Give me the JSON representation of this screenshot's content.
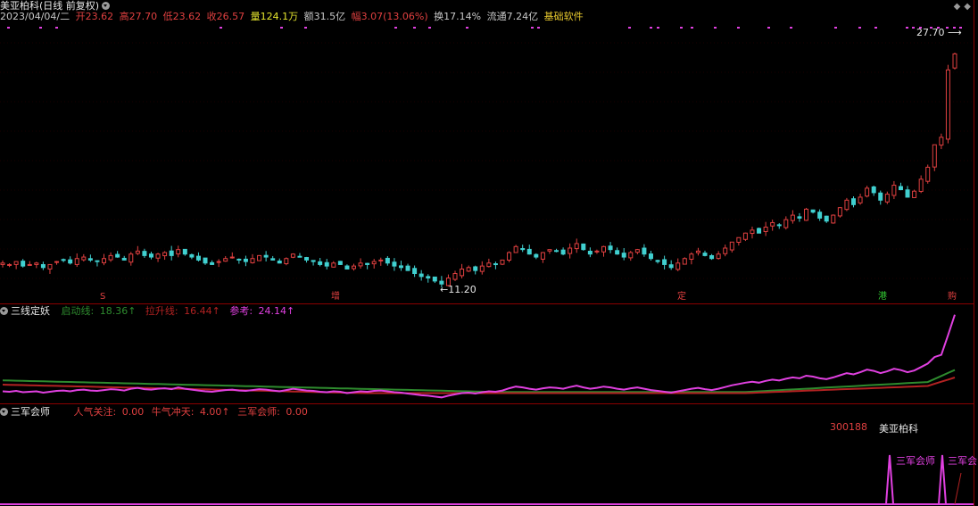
{
  "header": {
    "title": "美亚柏科(日线 前复权)"
  },
  "quote": {
    "date": "2023/04/04/二",
    "open_label": "开",
    "open": "23.62",
    "high_label": "高",
    "high": "27.70",
    "low_label": "低",
    "low": "23.62",
    "close_label": "收",
    "close": "26.57",
    "volume_label": "量",
    "volume": "124.1万",
    "amount_label": "额",
    "amount": "31.5亿",
    "change_label": "幅",
    "change": "3.07(13.06%)",
    "turnover_label": "换",
    "turnover": "17.14%",
    "float_label": "流通",
    "float": "7.24亿",
    "sector": "基础软件"
  },
  "chart_labels": {
    "high_price": "27.70",
    "low_price": "11.20"
  },
  "markers": [
    "S",
    "增",
    "定",
    "港",
    "购"
  ],
  "indicator1": {
    "title": "三线定妖",
    "start_label": "启动线: ",
    "start_value": "18.36↑",
    "lift_label": "拉升线: ",
    "lift_value": "16.44↑",
    "ref_label": "参考: ",
    "ref_value": "24.14↑"
  },
  "indicator2": {
    "title": "三军会师",
    "pop_label": "人气关注: ",
    "pop_value": "0.00",
    "bull_label": "牛气冲天: ",
    "bull_value": "4.00↑",
    "sjs_label": "三军会师: ",
    "sjs_value": "0.00",
    "code": "300188",
    "name": "美亚柏科",
    "signal_text": "三军会师",
    "signal_text_2": "三军会"
  },
  "colors": {
    "up": "#e04040",
    "down": "#40d0d0",
    "start_line": "#2e8b2e",
    "lift_line": "#b22222",
    "ref_line": "#e040e0",
    "dots": "#e040e0"
  },
  "chart_data": {
    "type": "candlestick",
    "price_range": [
      10.5,
      28.5
    ],
    "close": [
      12.6,
      12.5,
      12.7,
      12.4,
      12.5,
      12.6,
      12.3,
      12.5,
      12.7,
      12.8,
      12.6,
      12.9,
      13.0,
      12.8,
      12.7,
      12.9,
      13.1,
      13.0,
      12.8,
      13.2,
      13.4,
      13.1,
      13.0,
      13.2,
      13.3,
      13.1,
      13.5,
      13.2,
      13.0,
      12.8,
      12.6,
      12.5,
      12.7,
      12.9,
      13.0,
      12.8,
      12.7,
      12.9,
      13.1,
      13.0,
      12.8,
      12.6,
      12.9,
      13.2,
      13.0,
      12.8,
      12.7,
      12.5,
      12.4,
      12.6,
      12.5,
      12.2,
      12.4,
      12.6,
      12.5,
      12.7,
      12.8,
      12.6,
      12.4,
      12.3,
      12.1,
      11.9,
      11.7,
      11.6,
      11.4,
      11.2,
      11.6,
      11.9,
      12.2,
      12.3,
      12.1,
      12.4,
      12.6,
      12.5,
      12.8,
      13.3,
      13.7,
      13.5,
      13.2,
      13.0,
      13.3,
      13.5,
      13.4,
      13.2,
      13.6,
      13.9,
      13.5,
      13.2,
      13.4,
      13.7,
      13.5,
      13.2,
      13.0,
      13.3,
      13.5,
      13.2,
      12.9,
      12.7,
      12.5,
      12.3,
      12.6,
      12.9,
      13.2,
      13.4,
      13.1,
      12.9,
      13.2,
      13.6,
      14.0,
      14.3,
      14.6,
      14.8,
      14.6,
      15.0,
      15.3,
      15.1,
      15.5,
      15.8,
      15.6,
      16.2,
      16.0,
      15.6,
      15.4,
      15.8,
      16.3,
      16.8,
      16.5,
      17.0,
      17.6,
      17.3,
      16.8,
      17.2,
      17.8,
      17.5,
      17.0,
      17.4,
      18.2,
      19.0,
      20.5,
      21.0,
      25.5,
      26.57
    ],
    "indicator_lines": {
      "start_line_last": 18.36,
      "lift_line_last": 16.44,
      "reference_last": 24.14
    },
    "signals": [
      "三军会师"
    ]
  }
}
